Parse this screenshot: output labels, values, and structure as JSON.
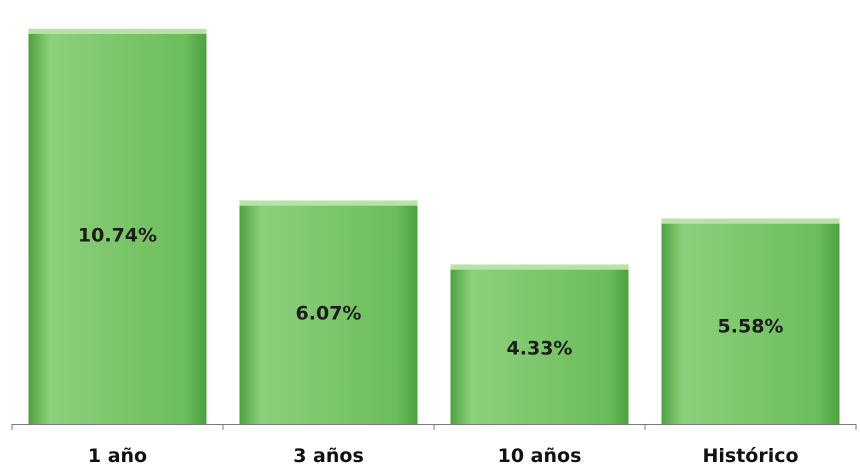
{
  "chart_data": {
    "type": "bar",
    "categories": [
      "1 año",
      "3 años",
      "10 años",
      "Histórico"
    ],
    "values": [
      10.74,
      6.07,
      4.33,
      5.58
    ],
    "data_labels": [
      "10.74%",
      "6.07%",
      "4.33%",
      "5.58%"
    ],
    "title": "",
    "xlabel": "",
    "ylabel": "",
    "ylim": [
      0,
      11.2
    ],
    "grid": false,
    "legend": "none",
    "colors": {
      "bar_fill": "#6cbd5b",
      "bar_fill_light": "#8dd07d",
      "bar_fill_dark": "#4ea13f",
      "bar_top": "#b9e3a6",
      "axis": "#7a7a7a"
    }
  }
}
